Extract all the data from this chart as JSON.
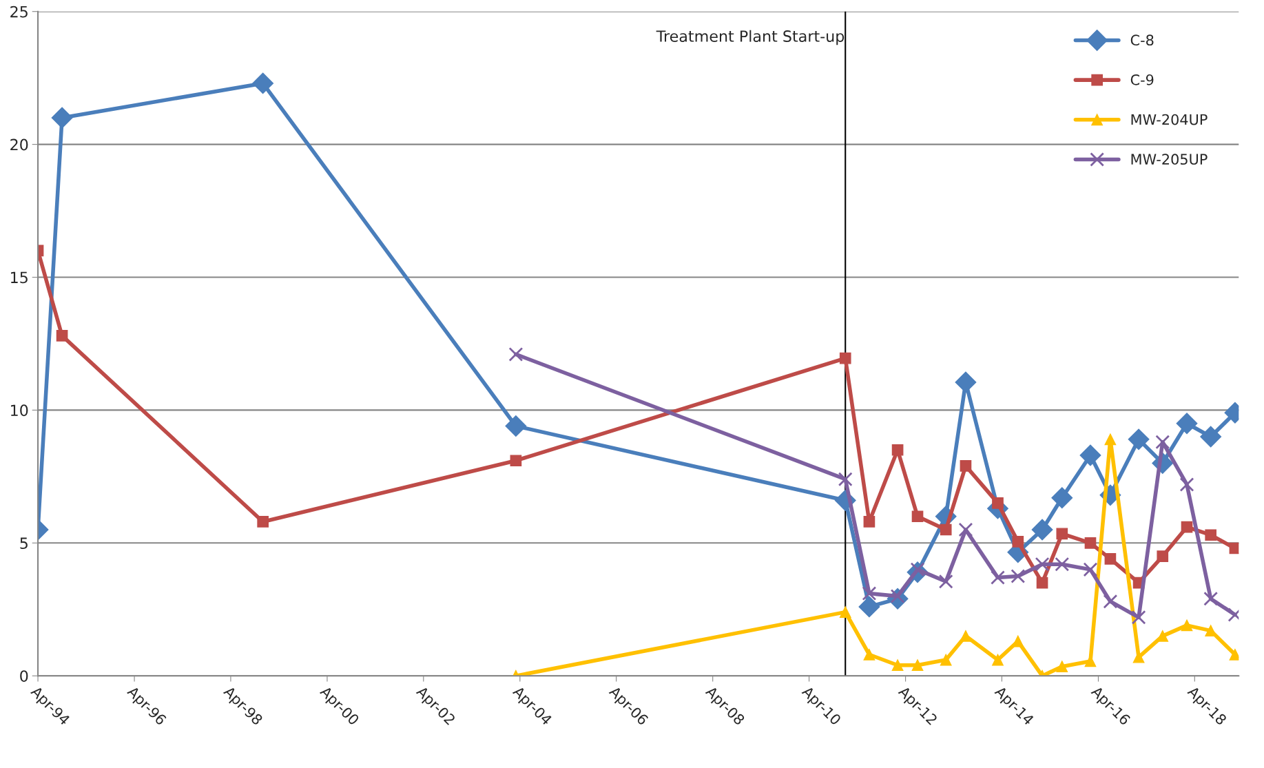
{
  "chart_data": {
    "type": "line",
    "xlim": [
      "1994-04",
      "2019-03"
    ],
    "xticks": [
      {
        "value": "1994-04",
        "label": "Apr-94"
      },
      {
        "value": "1996-04",
        "label": "Apr-96"
      },
      {
        "value": "1998-04",
        "label": "Apr-98"
      },
      {
        "value": "2000-04",
        "label": "Apr-00"
      },
      {
        "value": "2002-04",
        "label": "Apr-02"
      },
      {
        "value": "2004-04",
        "label": "Apr-04"
      },
      {
        "value": "2006-04",
        "label": "Apr-06"
      },
      {
        "value": "2008-04",
        "label": "Apr-08"
      },
      {
        "value": "2010-04",
        "label": "Apr-10"
      },
      {
        "value": "2012-04",
        "label": "Apr-12"
      },
      {
        "value": "2014-04",
        "label": "Apr-14"
      },
      {
        "value": "2016-04",
        "label": "Apr-16"
      },
      {
        "value": "2018-04",
        "label": "Apr-18"
      }
    ],
    "ylim": [
      0,
      25
    ],
    "yticks": [
      0,
      5,
      10,
      15,
      20,
      25
    ],
    "grid": "y",
    "legend": "top right",
    "ref_lines": [
      {
        "axis": "x",
        "value": "2011-01",
        "label": "Treatment Plant Start-up",
        "color": "#000000"
      }
    ],
    "series": [
      {
        "name": "C-8",
        "color": "#4a7ebb",
        "marker": "diamond",
        "x": [
          "1994-04",
          "1994-10",
          "1998-12",
          "2004-03",
          "2011-01",
          "2011-07",
          "2012-02",
          "2012-07",
          "2013-02",
          "2013-07",
          "2014-03",
          "2014-08",
          "2015-02",
          "2015-07",
          "2016-02",
          "2016-07",
          "2017-02",
          "2017-08",
          "2018-02",
          "2018-08",
          "2019-02"
        ],
        "values": [
          5.5,
          21.0,
          22.3,
          9.4,
          6.6,
          2.6,
          2.9,
          3.9,
          6.0,
          11.05,
          6.3,
          4.65,
          5.5,
          6.7,
          8.3,
          6.8,
          8.9,
          8.0,
          9.5,
          9.0,
          9.9
        ]
      },
      {
        "name": "C-9",
        "color": "#be4b48",
        "marker": "square",
        "x": [
          "1994-04",
          "1994-10",
          "1998-12",
          "2004-03",
          "2011-01",
          "2011-07",
          "2012-02",
          "2012-07",
          "2013-02",
          "2013-07",
          "2014-03",
          "2014-08",
          "2015-02",
          "2015-07",
          "2016-02",
          "2016-07",
          "2017-02",
          "2017-08",
          "2018-02",
          "2018-08",
          "2019-02"
        ],
        "values": [
          16.0,
          12.8,
          5.8,
          8.1,
          11.95,
          5.8,
          8.5,
          6.0,
          5.5,
          7.9,
          6.5,
          5.05,
          3.5,
          5.35,
          5.0,
          4.4,
          3.5,
          4.5,
          5.6,
          5.3,
          4.8
        ]
      },
      {
        "name": "MW-204UP",
        "color": "#ffc000",
        "marker": "triangle",
        "x": [
          "2004-03",
          "2011-01",
          "2011-07",
          "2012-02",
          "2012-07",
          "2013-02",
          "2013-07",
          "2014-03",
          "2014-08",
          "2015-02",
          "2015-07",
          "2016-02",
          "2016-07",
          "2017-02",
          "2017-08",
          "2018-02",
          "2018-08",
          "2019-02"
        ],
        "values": [
          0.0,
          2.4,
          0.8,
          0.4,
          0.4,
          0.6,
          1.5,
          0.6,
          1.3,
          0.0,
          0.35,
          0.55,
          8.9,
          0.7,
          1.5,
          1.9,
          1.7,
          0.8
        ]
      },
      {
        "name": "MW-205UP",
        "color": "#7d60a0",
        "marker": "cross",
        "x": [
          "2004-03",
          "2011-01",
          "2011-07",
          "2012-02",
          "2012-07",
          "2013-02",
          "2013-07",
          "2014-03",
          "2014-08",
          "2015-02",
          "2015-07",
          "2016-02",
          "2016-07",
          "2017-02",
          "2017-08",
          "2018-02",
          "2018-08",
          "2019-02"
        ],
        "values": [
          12.1,
          7.4,
          3.1,
          3.0,
          4.0,
          3.55,
          5.5,
          3.7,
          3.75,
          4.2,
          4.2,
          4.0,
          2.8,
          2.2,
          8.8,
          7.2,
          2.9,
          2.3
        ]
      }
    ]
  }
}
